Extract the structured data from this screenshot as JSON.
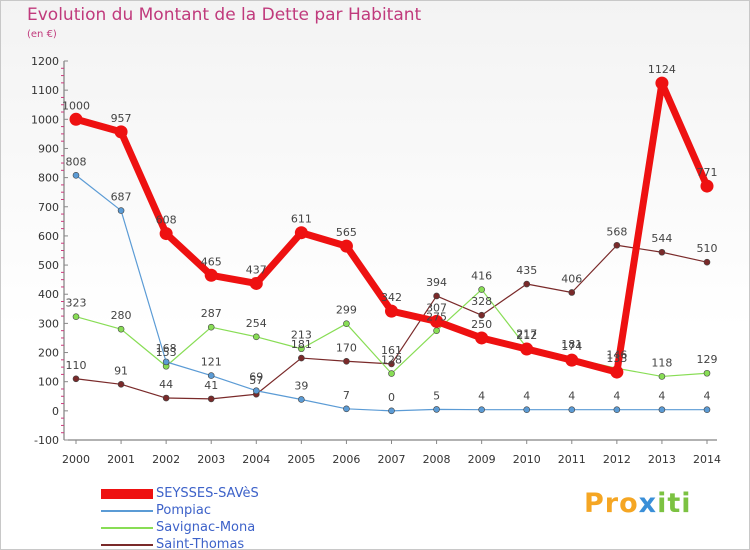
{
  "title": "Evolution du Montant de la Dette par Habitant",
  "subtitle": "(en €)",
  "logo": {
    "parts": [
      {
        "text": "Pro",
        "color": "#f5a623"
      },
      {
        "text": "x",
        "color": "#3a8fd8"
      },
      {
        "text": "iti",
        "color": "#7cc242"
      }
    ]
  },
  "chart_data": {
    "type": "line",
    "title": "Evolution du Montant de la Dette par Habitant",
    "subtitle": "(en €)",
    "xlabel": "",
    "ylabel": "",
    "categories": [
      "2000",
      "2001",
      "2002",
      "2003",
      "2004",
      "2005",
      "2006",
      "2007",
      "2008",
      "2009",
      "2010",
      "2011",
      "2012",
      "2013",
      "2014"
    ],
    "ylim": [
      -100,
      1200
    ],
    "yticks": [
      -100,
      0,
      100,
      200,
      300,
      400,
      500,
      600,
      700,
      800,
      900,
      1000,
      1100,
      1200
    ],
    "grid": false,
    "legend": "bottom-left",
    "series": [
      {
        "name": "SEYSSES-SAVèS",
        "color": "#ee1111",
        "width": 7,
        "marker": 6.5,
        "values": [
          1000,
          957,
          608,
          465,
          437,
          611,
          565,
          342,
          307,
          250,
          212,
          174,
          133,
          1124,
          771
        ],
        "labels": [
          "1000",
          "957",
          "608",
          "465",
          "437",
          "611",
          "565",
          "342",
          "307",
          "250",
          "212",
          "174",
          "133",
          "1124",
          "771"
        ]
      },
      {
        "name": "Pompiac",
        "color": "#5b9bd5",
        "width": 1.2,
        "marker": 3,
        "values": [
          808,
          687,
          168,
          121,
          69,
          39,
          7,
          0,
          5,
          4,
          4,
          4,
          4,
          4,
          4
        ],
        "labels": [
          "808",
          "687",
          "168",
          "121",
          "69",
          "39",
          "7",
          "0",
          "5",
          "4",
          "4",
          "4",
          "4",
          "4",
          "4"
        ]
      },
      {
        "name": "Savignac-Mona",
        "color": "#88dd55",
        "width": 1.2,
        "marker": 3,
        "values": [
          323,
          280,
          153,
          287,
          254,
          213,
          299,
          128,
          275,
          416,
          217,
          181,
          146,
          118,
          129
        ],
        "labels": [
          "323",
          "280",
          "153",
          "287",
          "254",
          "213",
          "299",
          "128",
          "275",
          "416",
          "217",
          "181",
          "146",
          "118",
          "129"
        ]
      },
      {
        "name": "Saint-Thomas",
        "color": "#7a2a2a",
        "width": 1.2,
        "marker": 3,
        "values": [
          110,
          91,
          44,
          41,
          57,
          181,
          170,
          161,
          394,
          328,
          435,
          406,
          568,
          544,
          510
        ],
        "labels": [
          "110",
          "91",
          "44",
          "41",
          "57",
          "181",
          "170",
          "161",
          "394",
          "328",
          "435",
          "406",
          "568",
          "544",
          "510"
        ]
      }
    ]
  }
}
